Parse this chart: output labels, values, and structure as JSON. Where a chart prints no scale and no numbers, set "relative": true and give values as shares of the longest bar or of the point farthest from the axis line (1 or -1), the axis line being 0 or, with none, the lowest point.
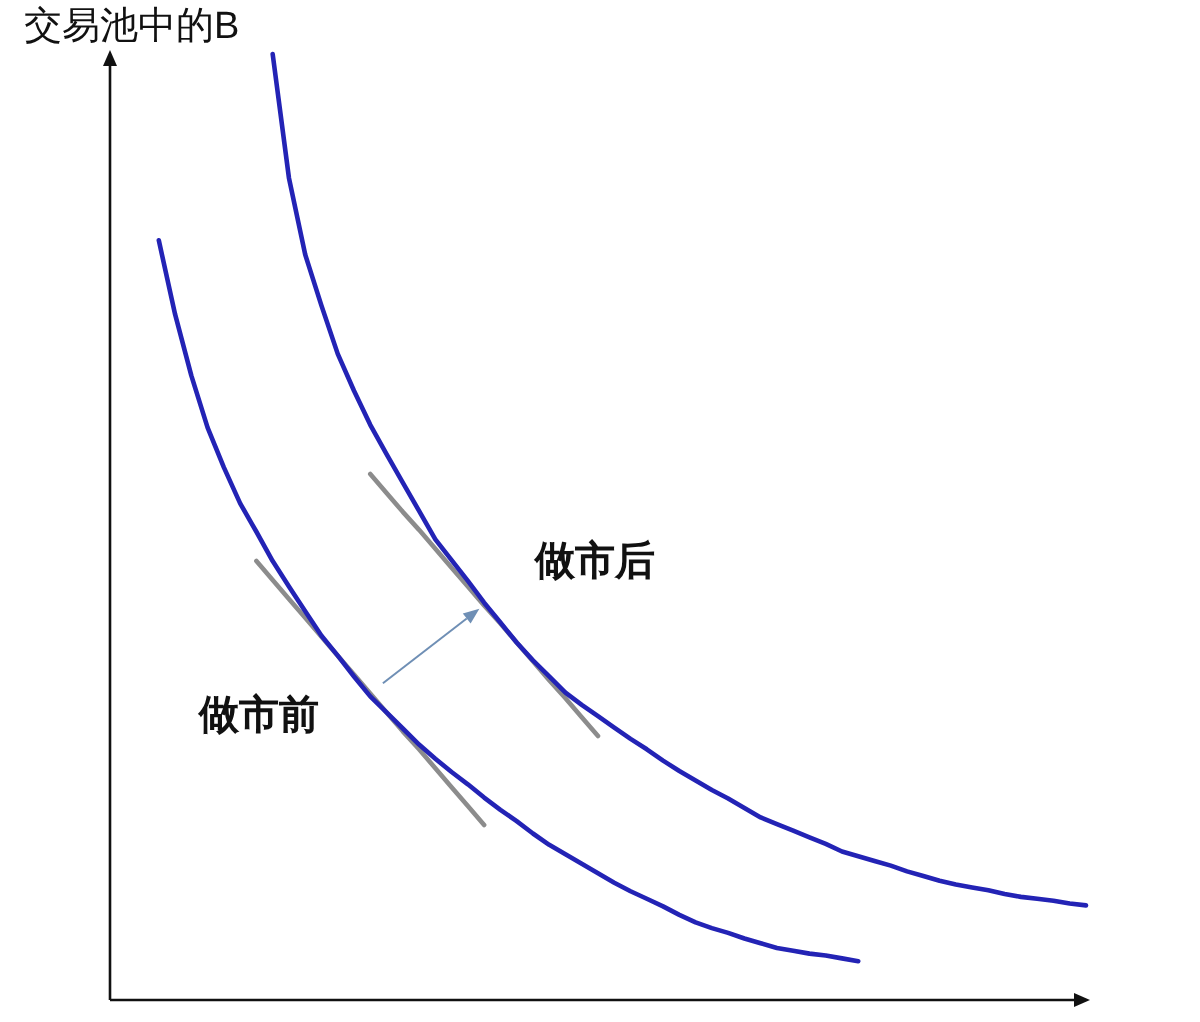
{
  "chart_data": {
    "type": "line",
    "relative": true,
    "ylabel": "交易池中的B",
    "categories": [
      null,
      null,
      null,
      null,
      null,
      null,
      null,
      null,
      null,
      null,
      null,
      null,
      null,
      null,
      null,
      null,
      null,
      null,
      null,
      null,
      null,
      null,
      null,
      null,
      null,
      null,
      null,
      null,
      null,
      null,
      null,
      null,
      null,
      null,
      null,
      null,
      null,
      null,
      null,
      null,
      null,
      null,
      null,
      null,
      null,
      null,
      null,
      null,
      null,
      null,
      null,
      null,
      null,
      null,
      null,
      null,
      null,
      null,
      null,
      null,
      null
    ],
    "series": [
      {
        "name": "做市前",
        "color": "#2323b5",
        "values": [
          null,
          null,
          null,
          0.803,
          0.725,
          0.66,
          0.605,
          0.563,
          0.525,
          0.495,
          0.464,
          0.437,
          0.411,
          0.385,
          0.364,
          0.342,
          0.321,
          0.304,
          0.287,
          0.27,
          0.255,
          0.241,
          0.228,
          0.214,
          0.201,
          0.189,
          0.176,
          0.164,
          0.154,
          0.144,
          0.134,
          0.124,
          0.115,
          0.107,
          0.099,
          0.09,
          0.082,
          0.076,
          0.071,
          0.065,
          0.06,
          0.055,
          0.052,
          0.049,
          0.047,
          0.044,
          0.041,
          null,
          null,
          null,
          null,
          null,
          null,
          null,
          null,
          null,
          null,
          null,
          null,
          null,
          null
        ]
      },
      {
        "name": "做市后",
        "color": "#2323b5",
        "values": [
          null,
          null,
          null,
          null,
          null,
          null,
          null,
          null,
          null,
          null,
          1.0,
          0.869,
          0.788,
          0.734,
          0.683,
          0.644,
          0.608,
          0.577,
          0.547,
          0.517,
          0.487,
          0.465,
          0.443,
          0.42,
          0.399,
          0.378,
          0.359,
          0.342,
          0.325,
          0.312,
          0.3,
          0.288,
          0.276,
          0.265,
          0.253,
          0.242,
          0.232,
          0.222,
          0.213,
          0.203,
          0.193,
          0.186,
          0.179,
          0.172,
          0.165,
          0.157,
          0.152,
          0.147,
          0.142,
          0.136,
          0.131,
          0.126,
          0.122,
          0.119,
          0.116,
          0.112,
          0.109,
          0.107,
          0.105,
          0.102,
          0.1
        ]
      },
      {
        "color": "#8c8c8c",
        "values": [
          null,
          null,
          null,
          null,
          null,
          null,
          null,
          null,
          null,
          0.464,
          0.444,
          0.424,
          0.404,
          0.384,
          0.364,
          0.344,
          0.324,
          0.304,
          0.284,
          0.265,
          0.245,
          0.225,
          0.205,
          0.185,
          null,
          null,
          null,
          null,
          null,
          null,
          null,
          null,
          null,
          null,
          null,
          null,
          null,
          null,
          null,
          null,
          null,
          null,
          null,
          null,
          null,
          null,
          null,
          null,
          null,
          null,
          null,
          null,
          null,
          null,
          null,
          null,
          null,
          null,
          null,
          null,
          null
        ]
      },
      {
        "color": "#8c8c8c",
        "values": [
          null,
          null,
          null,
          null,
          null,
          null,
          null,
          null,
          null,
          null,
          null,
          null,
          null,
          null,
          null,
          null,
          0.556,
          0.536,
          0.516,
          0.497,
          0.477,
          0.457,
          0.437,
          0.417,
          0.398,
          0.378,
          0.358,
          0.338,
          0.319,
          0.299,
          0.279,
          null,
          null,
          null,
          null,
          null,
          null,
          null,
          null,
          null,
          null,
          null,
          null,
          null,
          null,
          null,
          null,
          null,
          null,
          null,
          null,
          null,
          null,
          null,
          null,
          null,
          null,
          null,
          null,
          null,
          null
        ]
      }
    ]
  }
}
